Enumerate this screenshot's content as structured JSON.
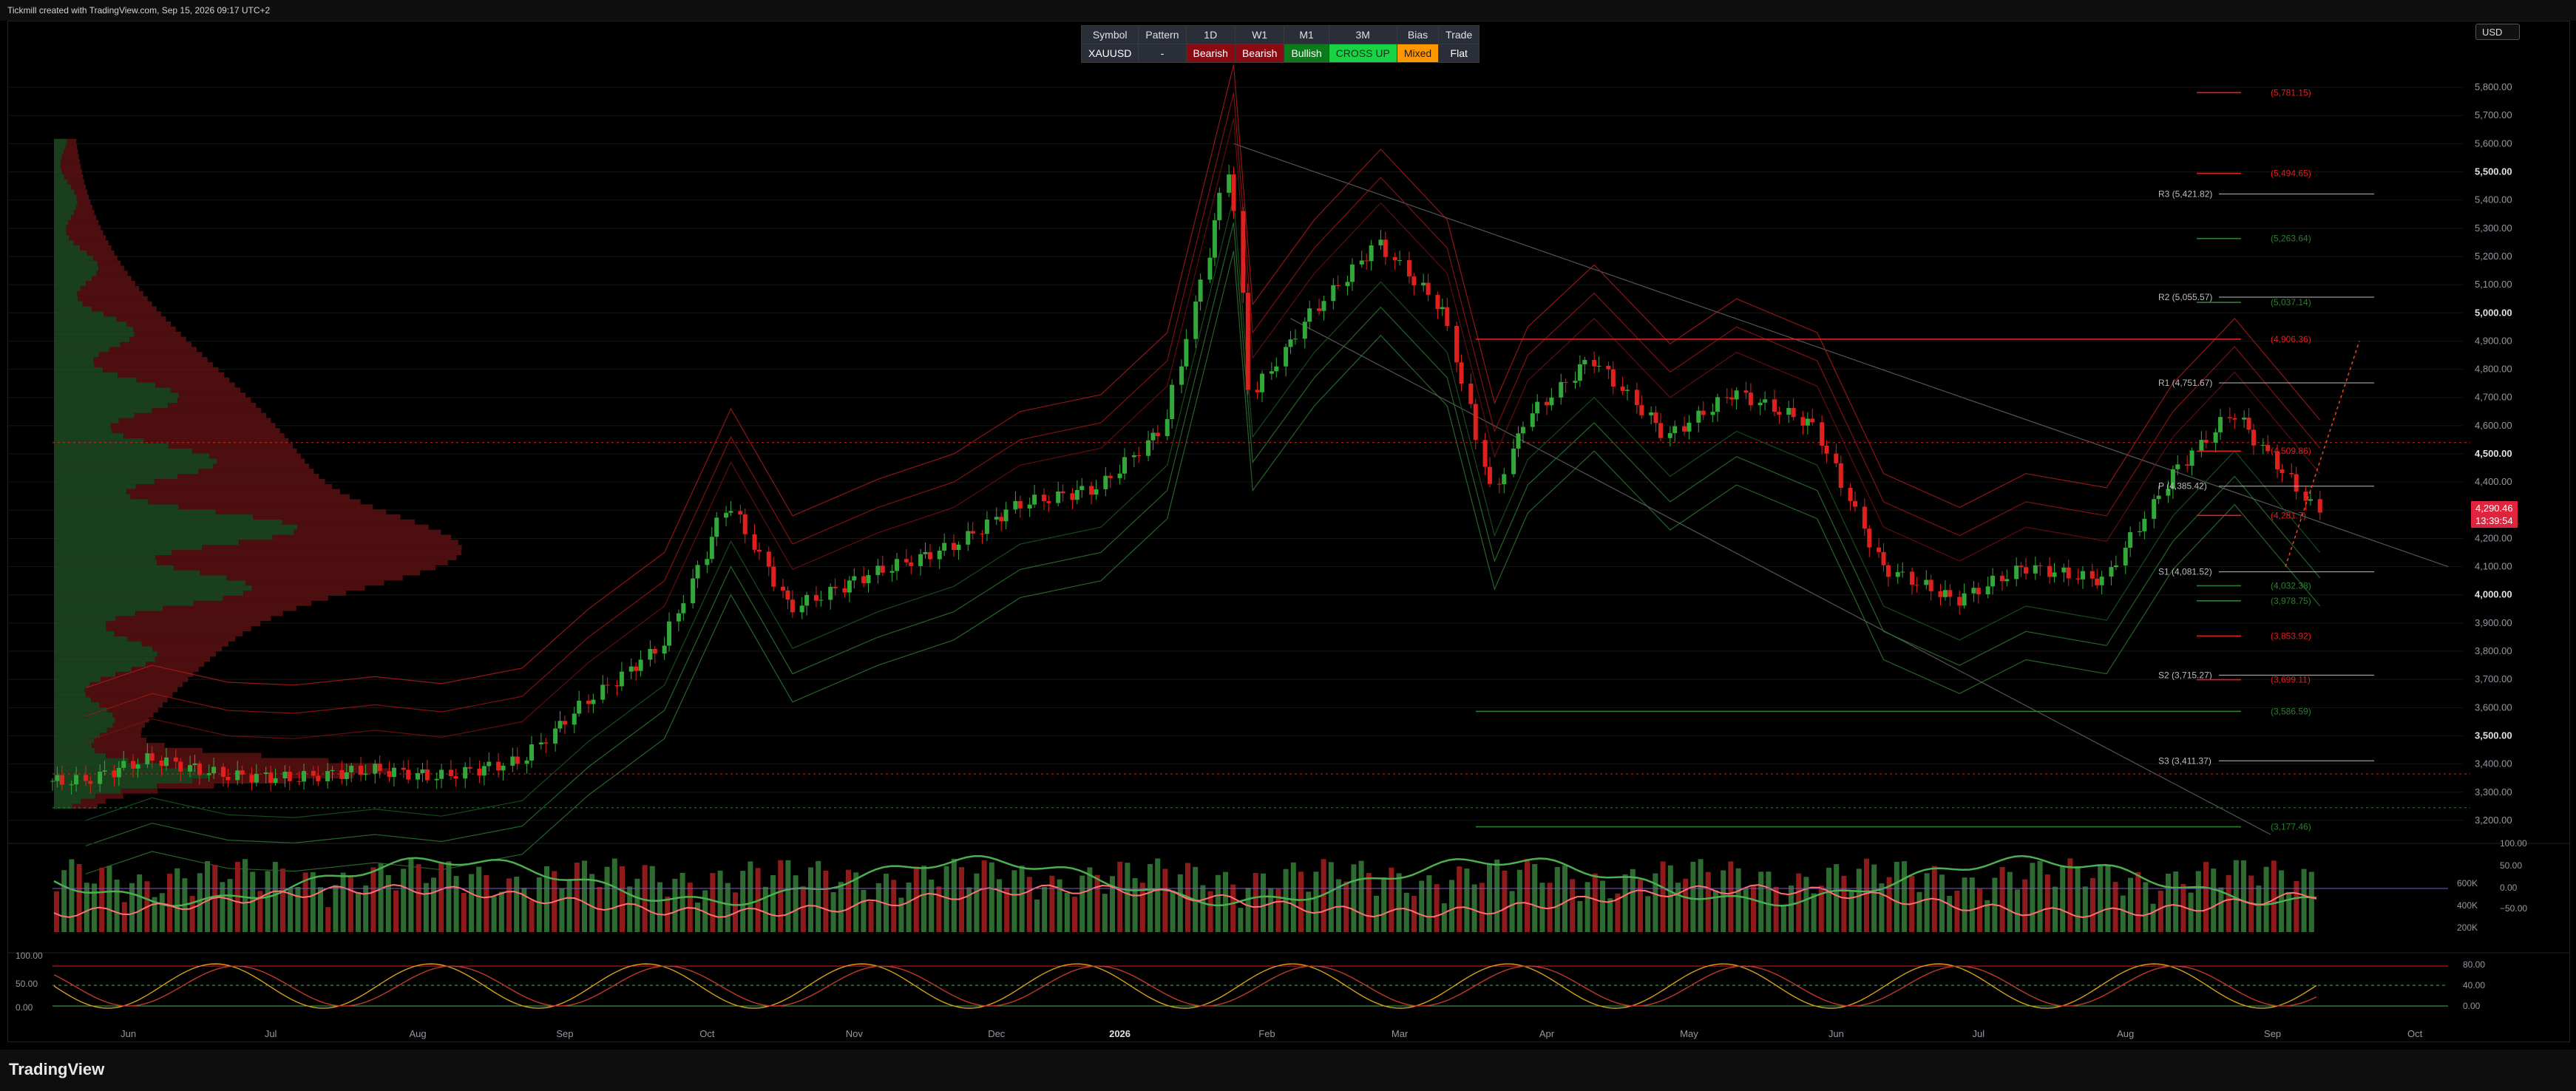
{
  "header": {
    "text": "Tickmill created with TradingView.com, Sep 15, 2026 09:17 UTC+2"
  },
  "footer": {
    "brand": "TradingView"
  },
  "currency_button": "USD",
  "signal_table": {
    "headers": [
      "Symbol",
      "Pattern",
      "1D",
      "W1",
      "M1",
      "3M",
      "Bias",
      "Trade"
    ],
    "values": [
      {
        "text": "XAUUSD",
        "bg": "#2a2e39",
        "color": "#ffffff"
      },
      {
        "text": "-",
        "bg": "#2a2e39",
        "color": "#ffffff"
      },
      {
        "text": "Bearish",
        "bg": "#8b0a12",
        "color": "#ffffff"
      },
      {
        "text": "Bearish",
        "bg": "#8b0a12",
        "color": "#ffffff"
      },
      {
        "text": "Bullish",
        "bg": "#0a7a1a",
        "color": "#ffffff"
      },
      {
        "text": "CROSS UP",
        "bg": "#18d445",
        "color": "#0a3a12"
      },
      {
        "text": "Mixed",
        "bg": "#ff9800",
        "color": "#2a1500"
      },
      {
        "text": "Flat",
        "bg": "#2a2e39",
        "color": "#ffffff"
      }
    ]
  },
  "price_tags": {
    "last": "4,290.46",
    "countdown": "13:39:54"
  },
  "colors": {
    "up": "#2e7d32",
    "down": "#e0201c",
    "bg": "#000000",
    "grid": "#161616",
    "text": "#9598a1"
  },
  "chart_data": {
    "type": "candlestick",
    "symbol": "XAUUSD",
    "ylim": [
      3150,
      5850
    ],
    "x_ticks": [
      "Jun",
      "Jul",
      "Aug",
      "Sep",
      "Oct",
      "Nov",
      "Dec",
      "2026",
      "Feb",
      "Mar",
      "Apr",
      "May",
      "Jun",
      "Jul",
      "Aug",
      "Sep",
      "Oct"
    ],
    "y_ticks": [
      "5,800.00",
      "5,700.00",
      "5,600.00",
      "5,500.00",
      "5,400.00",
      "5,300.00",
      "5,200.00",
      "5,100.00",
      "5,000.00",
      "4,900.00",
      "4,800.00",
      "4,700.00",
      "4,600.00",
      "4,500.00",
      "4,400.00",
      "4,300.00",
      "4,200.00",
      "4,100.00",
      "4,000.00",
      "3,900.00",
      "3,800.00",
      "3,700.00",
      "3,600.00",
      "3,500.00",
      "3,400.00",
      "3,300.00",
      "3,200.00"
    ],
    "close_path": [
      {
        "date": "2025-06-01",
        "close": 3340
      },
      {
        "date": "2025-06-15",
        "close": 3420
      },
      {
        "date": "2025-07-01",
        "close": 3360
      },
      {
        "date": "2025-07-15",
        "close": 3350
      },
      {
        "date": "2025-08-01",
        "close": 3380
      },
      {
        "date": "2025-08-15",
        "close": 3355
      },
      {
        "date": "2025-09-01",
        "close": 3410
      },
      {
        "date": "2025-09-15",
        "close": 3620
      },
      {
        "date": "2025-10-01",
        "close": 3820
      },
      {
        "date": "2025-10-15",
        "close": 4330
      },
      {
        "date": "2025-10-28",
        "close": 3950
      },
      {
        "date": "2025-11-15",
        "close": 4080
      },
      {
        "date": "2025-12-01",
        "close": 4170
      },
      {
        "date": "2025-12-15",
        "close": 4320
      },
      {
        "date": "2026-01-01",
        "close": 4380
      },
      {
        "date": "2026-01-15",
        "close": 4600
      },
      {
        "date": "2026-01-29",
        "close": 5550
      },
      {
        "date": "2026-02-02",
        "close": 4700
      },
      {
        "date": "2026-02-15",
        "close": 5000
      },
      {
        "date": "2026-03-01",
        "close": 5250
      },
      {
        "date": "2026-03-15",
        "close": 5000
      },
      {
        "date": "2026-03-25",
        "close": 4350
      },
      {
        "date": "2026-04-01",
        "close": 4620
      },
      {
        "date": "2026-04-15",
        "close": 4840
      },
      {
        "date": "2026-05-01",
        "close": 4560
      },
      {
        "date": "2026-05-15",
        "close": 4720
      },
      {
        "date": "2026-06-01",
        "close": 4600
      },
      {
        "date": "2026-06-15",
        "close": 4100
      },
      {
        "date": "2026-07-01",
        "close": 3980
      },
      {
        "date": "2026-07-15",
        "close": 4100
      },
      {
        "date": "2026-08-01",
        "close": 4050
      },
      {
        "date": "2026-08-15",
        "close": 4420
      },
      {
        "date": "2026-08-28",
        "close": 4650
      },
      {
        "date": "2026-09-15",
        "close": 4290
      }
    ],
    "pivot_levels": [
      {
        "label": "R3 (5,421.82)",
        "value": 5421.82
      },
      {
        "label": "R2 (5,055.57)",
        "value": 5055.57
      },
      {
        "label": "R1 (4,751.67)",
        "value": 4751.67
      },
      {
        "label": "P (4,385.42)",
        "value": 4385.42
      },
      {
        "label": "S1 (4,081.52)",
        "value": 4081.52
      },
      {
        "label": "S2 (3,715.27)",
        "value": 3715.27
      },
      {
        "label": "S3 (3,411.37)",
        "value": 3411.37
      }
    ],
    "target_levels": [
      {
        "label": "(5,781.15)",
        "value": 5781.15,
        "color": "#e0201c"
      },
      {
        "label": "(5,494.65)",
        "value": 5494.65,
        "color": "#e0201c"
      },
      {
        "label": "(5,263.64)",
        "value": 5263.64,
        "color": "#2e7d32"
      },
      {
        "label": "(5,037.14)",
        "value": 5037.14,
        "color": "#2e7d32"
      },
      {
        "label": "(4,906.36)",
        "value": 4906.36,
        "color": "#e0201c"
      },
      {
        "label": "(4,509.86)",
        "value": 4509.86,
        "color": "#e0201c"
      },
      {
        "label": "(4,281.7)",
        "value": 4281.7,
        "color": "#e0201c"
      },
      {
        "label": "(4,032.38)",
        "value": 4032.38,
        "color": "#2e7d32"
      },
      {
        "label": "(3,978.75)",
        "value": 3978.75,
        "color": "#2e7d32"
      },
      {
        "label": "(3,853.92)",
        "value": 3853.92,
        "color": "#e0201c"
      },
      {
        "label": "(3,699.11)",
        "value": 3699.11,
        "color": "#e0201c"
      },
      {
        "label": "(3,586.59)",
        "value": 3586.59,
        "color": "#2e7d32"
      },
      {
        "label": "(3,177.46)",
        "value": 3177.46,
        "color": "#2e7d32"
      }
    ],
    "volume_axis": [
      "600K",
      "400K",
      "200K"
    ],
    "rsi_axis": [
      "100.00",
      "50.00",
      "0.00",
      "−50.00"
    ],
    "stoch_axis_left": [
      "100.00",
      "50.00",
      "0.00"
    ],
    "stoch_axis_right": [
      "80.00",
      "40.00",
      "0.00"
    ]
  }
}
